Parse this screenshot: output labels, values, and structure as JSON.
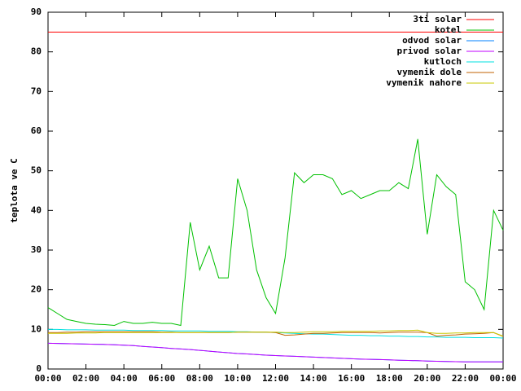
{
  "chart_data": {
    "type": "line",
    "ylabel": "teplota ve C",
    "x": [
      0,
      0.5,
      1,
      1.5,
      2,
      2.5,
      3,
      3.5,
      4,
      4.5,
      5,
      5.5,
      6,
      6.5,
      7,
      7.5,
      8,
      8.5,
      9,
      9.5,
      10,
      10.5,
      11,
      11.5,
      12,
      12.5,
      13,
      13.5,
      14,
      14.5,
      15,
      15.5,
      16,
      16.5,
      17,
      17.5,
      18,
      18.5,
      19,
      19.5,
      20,
      20.5,
      21,
      21.5,
      22,
      22.5,
      23,
      23.5,
      24
    ],
    "xlim": [
      0,
      24
    ],
    "xticks": [
      {
        "value": 0,
        "label": "00:00"
      },
      {
        "value": 2,
        "label": "02:00"
      },
      {
        "value": 4,
        "label": "04:00"
      },
      {
        "value": 6,
        "label": "06:00"
      },
      {
        "value": 8,
        "label": "08:00"
      },
      {
        "value": 10,
        "label": "10:00"
      },
      {
        "value": 12,
        "label": "12:00"
      },
      {
        "value": 14,
        "label": "14:00"
      },
      {
        "value": 16,
        "label": "16:00"
      },
      {
        "value": 18,
        "label": "18:00"
      },
      {
        "value": 20,
        "label": "20:00"
      },
      {
        "value": 22,
        "label": "22:00"
      },
      {
        "value": 24,
        "label": "00:00"
      }
    ],
    "ylim": [
      0,
      90
    ],
    "yticks": [
      0,
      10,
      20,
      30,
      40,
      50,
      60,
      70,
      80,
      90
    ],
    "legend": "top-right",
    "series": [
      {
        "name": "3ti solar",
        "color": "#ff0000",
        "values": [
          85,
          85,
          85,
          85,
          85,
          85,
          85,
          85,
          85,
          85,
          85,
          85,
          85,
          85,
          85,
          85,
          85,
          85,
          85,
          85,
          85,
          85,
          85,
          85,
          85,
          85,
          85,
          85,
          85,
          85,
          85,
          85,
          85,
          85,
          85,
          85,
          85,
          85,
          85,
          85,
          85,
          85,
          85,
          85,
          85,
          85,
          85,
          85,
          85
        ]
      },
      {
        "name": "kotel",
        "color": "#00c000",
        "values": [
          15.5,
          14,
          12.5,
          12,
          11.5,
          11.3,
          11.2,
          11,
          12,
          11.5,
          11.5,
          11.8,
          11.5,
          11.5,
          11,
          37,
          25,
          31,
          23,
          23,
          48,
          40,
          25,
          18,
          14,
          28,
          49.5,
          47,
          49,
          49,
          48,
          44,
          45,
          43,
          44,
          45,
          45,
          47,
          45.5,
          58,
          34,
          49,
          46,
          44,
          22,
          20,
          15,
          40,
          35
        ]
      },
      {
        "name": "odvod solar",
        "color": "#0080ff",
        "values": [
          6.5,
          6.45,
          6.4,
          6.35,
          6.3,
          6.25,
          6.2,
          6.1,
          6.0,
          5.9,
          5.7,
          5.55,
          5.4,
          5.2,
          5.05,
          4.9,
          4.7,
          4.5,
          4.3,
          4.1,
          3.9,
          3.8,
          3.65,
          3.5,
          3.4,
          3.3,
          3.2,
          3.1,
          3.0,
          2.9,
          2.8,
          2.7,
          2.6,
          2.5,
          2.45,
          2.4,
          2.3,
          2.2,
          2.15,
          2.1,
          2.0,
          1.95,
          1.9,
          1.85,
          1.8,
          1.8,
          1.8,
          1.8,
          1.8
        ]
      },
      {
        "name": "privod solar",
        "color": "#c000ff",
        "values": [
          6.5,
          6.45,
          6.4,
          6.35,
          6.3,
          6.25,
          6.2,
          6.1,
          6.0,
          5.9,
          5.7,
          5.55,
          5.4,
          5.2,
          5.05,
          4.9,
          4.7,
          4.5,
          4.3,
          4.1,
          3.9,
          3.8,
          3.65,
          3.5,
          3.4,
          3.3,
          3.2,
          3.1,
          3.0,
          2.9,
          2.8,
          2.7,
          2.6,
          2.5,
          2.45,
          2.4,
          2.3,
          2.2,
          2.15,
          2.1,
          2.0,
          1.95,
          1.9,
          1.85,
          1.8,
          1.8,
          1.8,
          1.8,
          1.8
        ]
      },
      {
        "name": "kutloch",
        "color": "#00e0e0",
        "values": [
          10.0,
          10.0,
          9.9,
          9.9,
          9.9,
          9.8,
          9.8,
          9.8,
          9.8,
          9.7,
          9.7,
          9.7,
          9.7,
          9.6,
          9.6,
          9.6,
          9.6,
          9.5,
          9.5,
          9.5,
          9.4,
          9.4,
          9.3,
          9.3,
          9.2,
          9.1,
          9.0,
          8.9,
          8.8,
          8.8,
          8.7,
          8.6,
          8.5,
          8.5,
          8.4,
          8.4,
          8.3,
          8.3,
          8.2,
          8.2,
          8.1,
          8.1,
          8.0,
          8.0,
          8.0,
          7.9,
          7.9,
          7.9,
          7.8
        ]
      },
      {
        "name": "vymenik dole",
        "color": "#c06000",
        "values": [
          9.2,
          9.2,
          9.3,
          9.3,
          9.4,
          9.4,
          9.4,
          9.4,
          9.4,
          9.4,
          9.4,
          9.4,
          9.3,
          9.3,
          9.2,
          9.2,
          9.2,
          9.2,
          9.2,
          9.2,
          9.3,
          9.3,
          9.3,
          9.3,
          9.2,
          8.5,
          8.6,
          8.8,
          9.0,
          9.0,
          9.1,
          9.2,
          9.2,
          9.2,
          9.2,
          9.1,
          9.2,
          9.3,
          9.3,
          9.3,
          9.2,
          8.3,
          8.5,
          8.6,
          8.8,
          8.9,
          9.0,
          9.2,
          8.2
        ]
      },
      {
        "name": "vymenik nahore",
        "color": "#c8c800",
        "values": [
          9.0,
          9.0,
          9.0,
          9.1,
          9.1,
          9.1,
          9.2,
          9.2,
          9.2,
          9.2,
          9.2,
          9.2,
          9.2,
          9.2,
          9.2,
          9.2,
          9.2,
          9.2,
          9.2,
          9.2,
          9.3,
          9.3,
          9.3,
          9.3,
          9.3,
          9.2,
          9.2,
          9.3,
          9.4,
          9.4,
          9.4,
          9.5,
          9.5,
          9.5,
          9.5,
          9.6,
          9.6,
          9.7,
          9.7,
          9.8,
          9.2,
          9.0,
          9.0,
          9.1,
          9.1,
          9.2,
          9.2,
          9.2,
          8.3
        ]
      }
    ]
  }
}
